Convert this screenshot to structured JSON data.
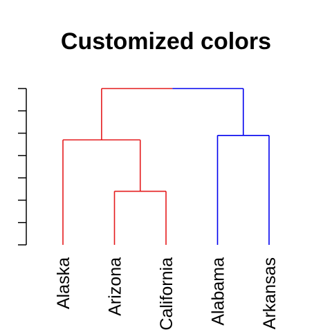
{
  "title": "Customized colors",
  "chart_data": {
    "type": "dendrogram",
    "title": "Customized colors",
    "leaves": [
      "Alaska",
      "Arizona",
      "California",
      "Alabama",
      "Arkansas"
    ],
    "merges": [
      {
        "left": "Arizona",
        "right": "California",
        "height": 2.4,
        "color": "#e41a1c"
      },
      {
        "left": "Alaska",
        "right": "Arizona+California",
        "height": 4.7,
        "color": "#e41a1c"
      },
      {
        "left": "Alabama",
        "right": "Arkansas",
        "height": 4.9,
        "color": "#0000ee"
      },
      {
        "left": "Alaska+Arizona+California",
        "right": "Alabama+Arkansas",
        "height": 7.0,
        "color_left": "#e41a1c",
        "color_right": "#0000ee"
      }
    ],
    "yaxis": {
      "min": 0,
      "max": 7,
      "ticks": [
        0,
        1,
        2,
        3,
        4,
        5,
        6,
        7
      ],
      "tick_labels_shown": false
    },
    "cluster_colors": {
      "cluster_1": "#e41a1c",
      "cluster_2": "#0000ee"
    },
    "grid": false,
    "legend": "none"
  }
}
